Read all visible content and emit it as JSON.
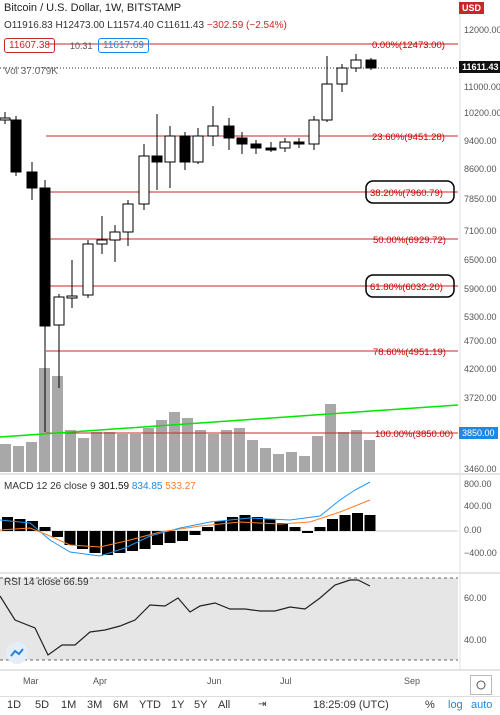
{
  "header": {
    "title": "Bitcoin / U.S. Dollar",
    "interval": "1W",
    "exchange": "BITSTAMP",
    "currency_badge": "USD",
    "ohlc": {
      "o_label": "O",
      "o": "11916.83",
      "h_label": "H",
      "h": "12473.00",
      "l_label": "L",
      "l": "11574.40",
      "c_label": "C",
      "c": "11611.43",
      "change": "−302.59 (−2.54%)"
    },
    "bid": "11607.38",
    "spread": "10.31",
    "ask": "11617.69",
    "volume_label": "Vol",
    "volume": "37.079K"
  },
  "price_axis": {
    "ticks": [
      "12000.00",
      "11000.00",
      "10200.00",
      "9400.00",
      "8600.00",
      "7850.00",
      "7100.00",
      "6500.00",
      "5900.00",
      "5300.00",
      "4700.00",
      "4200.00",
      "3720.00",
      "3460.00"
    ],
    "current_price": "11611.43",
    "low_tag": "3850.00"
  },
  "fib_levels": [
    {
      "label": "0.00%(12473.00)"
    },
    {
      "label": "23.60%(9451.28)"
    },
    {
      "label": "38.20%(7960.79)"
    },
    {
      "label": "50.00%(6929.72)"
    },
    {
      "label": "61.80%(6032.20)"
    },
    {
      "label": "78.60%(4951.19)"
    },
    {
      "label": "100.00%(3850.00)"
    }
  ],
  "macd": {
    "label": "MACD 12 26 close 9",
    "v1": "301.59",
    "v2": "834.85",
    "v3": "533.27",
    "ticks": [
      "800.00",
      "400.00",
      "0.00",
      "−400.00"
    ]
  },
  "rsi": {
    "label": "RSI 14 close",
    "value": "66.59",
    "ticks": [
      "60.00",
      "40.00"
    ]
  },
  "time_axis": [
    "Mar",
    "Apr",
    "Jun",
    "Jul",
    "Sep"
  ],
  "bottom_bar": {
    "timeframes": [
      "1D",
      "5D",
      "1M",
      "3M",
      "6M",
      "YTD",
      "1Y",
      "5Y",
      "All"
    ],
    "time": "18:25:09 (UTC)",
    "pct": "%",
    "log": "log",
    "auto": "auto"
  },
  "colors": {
    "up": "#ffffff",
    "down": "#000000",
    "fib": "#c62828",
    "macd_line": "#2196f3",
    "signal_line": "#ff7f27",
    "trend": "#00e600"
  }
}
